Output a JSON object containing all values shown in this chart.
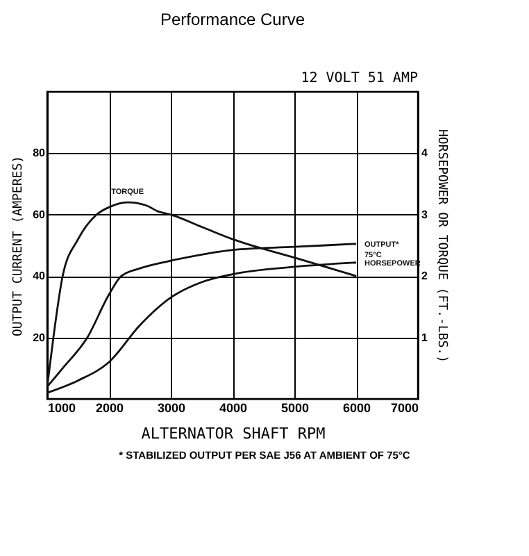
{
  "chart_data": {
    "type": "line",
    "title": "Performance Curve",
    "subtitle": "12 VOLT 51 AMP",
    "xlabel": "ALTERNATOR SHAFT RPM",
    "ylabel": "OUTPUT CURRENT (AMPERES)",
    "y2label": "HORSEPOWER OR TORQUE (FT.-LBS.)",
    "annotations": [
      "* STABILIZED OUTPUT PER SAE J56 AT AMBIENT OF 75°C"
    ],
    "xlim": [
      1000,
      7000
    ],
    "xticks": [
      1000,
      2000,
      3000,
      4000,
      5000,
      6000,
      7000
    ],
    "ylim": [
      0,
      100
    ],
    "yticks": [
      20,
      40,
      60,
      80
    ],
    "y2lim": [
      0,
      5
    ],
    "y2ticks": [
      1,
      2,
      3,
      4
    ],
    "grid": true,
    "legend": false,
    "marker": "none",
    "series": [
      {
        "name": "TORQUE",
        "color": "#111111",
        "axis": "y2",
        "x": [
          1000,
          1100,
          1250,
          1500,
          1800,
          2000,
          2300,
          2600,
          2800,
          3000,
          3500,
          4000,
          5000,
          6000
        ],
        "values": [
          0.2,
          1.0,
          2.0,
          2.6,
          3.0,
          3.12,
          3.2,
          3.15,
          3.05,
          3.0,
          2.8,
          2.6,
          2.3,
          2.0
        ]
      },
      {
        "name": "OUTPUT* 75°C",
        "color": "#111111",
        "x": [
          1000,
          1250,
          1650,
          2000,
          2200,
          2500,
          3000,
          3500,
          4000,
          5000,
          6000
        ],
        "values": [
          4,
          10,
          20,
          34,
          40,
          42.5,
          45,
          47,
          48.5,
          49.5,
          50.5
        ]
      },
      {
        "name": "HORSEPOWER",
        "color": "#111111",
        "axis": "y2",
        "x": [
          1000,
          1500,
          2000,
          2500,
          3000,
          3500,
          4000,
          5000,
          6000
        ],
        "values": [
          0.1,
          0.3,
          0.6,
          1.2,
          1.65,
          1.9,
          2.03,
          2.15,
          2.22
        ]
      }
    ]
  }
}
